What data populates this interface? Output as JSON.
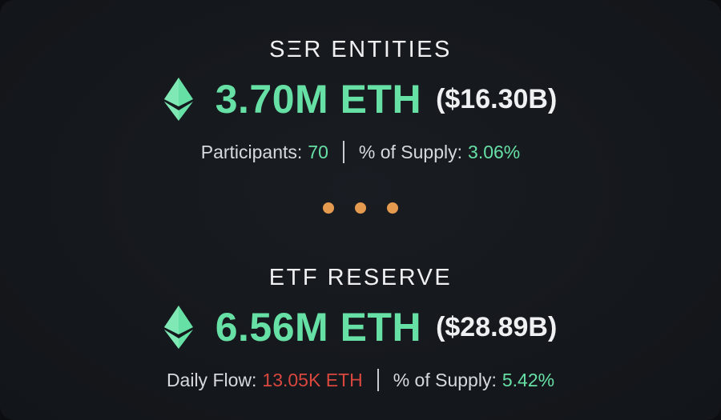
{
  "sections": {
    "ser": {
      "title": "SΞR ENTITIES",
      "amount": "3.70M ETH",
      "usd": "($16.30B)",
      "stat1_label": "Participants:",
      "stat1_value": "70",
      "stat2_label": "% of Supply:",
      "stat2_value": "3.06%"
    },
    "etf": {
      "title": "ETF RESERVE",
      "amount": "6.56M ETH",
      "usd": "($28.89B)",
      "stat1_label": "Daily Flow:",
      "stat1_value": "13.05K ETH",
      "stat2_label": "% of Supply:",
      "stat2_value": "5.42%"
    }
  },
  "icons": {
    "eth": "ethereum-icon"
  },
  "colors": {
    "positive": "#67e0a6",
    "negative": "#d9473f",
    "dots": "#e49a4f",
    "text": "#eef0f2"
  }
}
